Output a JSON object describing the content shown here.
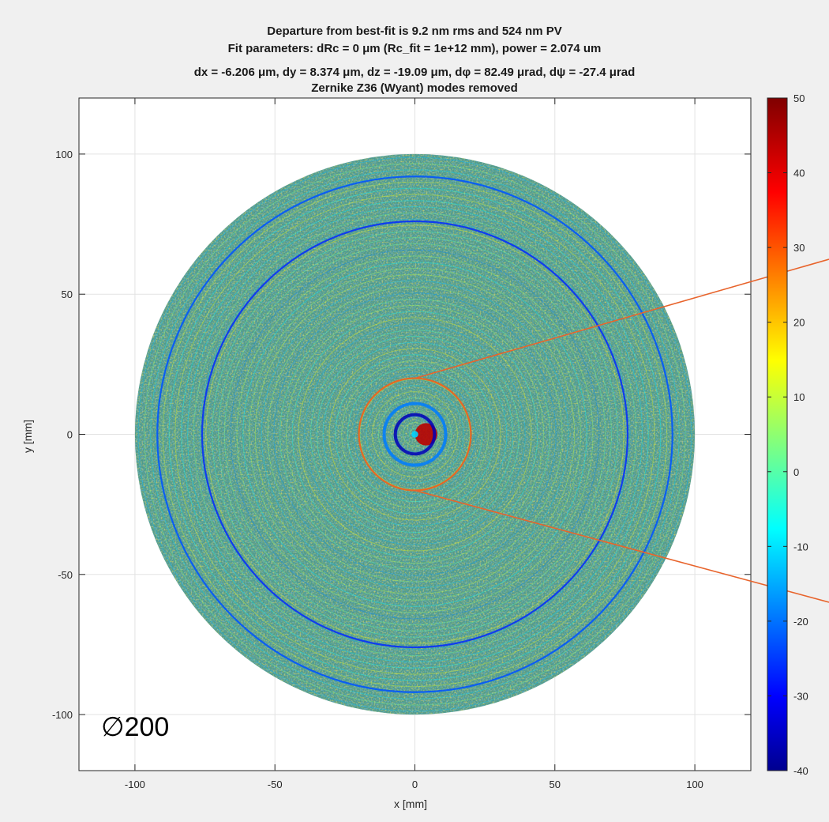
{
  "chart_data": {
    "type": "heatmap",
    "title_lines": [
      "Departure from best-fit is 9.2 nm rms and 524 nm PV",
      "Fit parameters: dRc = 0 μm (Rc_fit = 1e+12 mm), power = 2.074 um",
      "dx = -6.206 μm, dy = 8.374 μm, dz = -19.09 μm, dφ = 82.49 μrad, dψ = -27.4 μrad",
      "Zernike Z36 (Wyant) modes removed"
    ],
    "xlabel": "x [mm]",
    "ylabel": "y [mm]",
    "xlim": [
      -120,
      120
    ],
    "ylim": [
      -120,
      120
    ],
    "xticks": [
      -100,
      -50,
      0,
      50,
      100
    ],
    "yticks": [
      -100,
      -50,
      0,
      50,
      100
    ],
    "grid": true,
    "aperture_diameter_mm": 200,
    "aperture_label": "∅200",
    "colorbar": {
      "range": [
        -40,
        50
      ],
      "ticks": [
        -40,
        -30,
        -20,
        -10,
        0,
        10,
        20,
        30,
        40,
        50
      ],
      "colormap": "jet"
    },
    "features": [
      {
        "kind": "center-peak",
        "x_mm": 4,
        "y_mm": 0,
        "radius_mm": 4,
        "value": 45
      },
      {
        "kind": "ring",
        "radius_mm": 7,
        "value": -35
      },
      {
        "kind": "ring",
        "radius_mm": 11,
        "value": -18
      },
      {
        "kind": "ring",
        "radius_mm": 20,
        "value": 30
      },
      {
        "kind": "ring",
        "radius_mm": 76,
        "value": -25
      },
      {
        "kind": "ring",
        "radius_mm": 92,
        "value": -22
      }
    ],
    "annotation": {
      "kind": "zoom-callout",
      "color": "#e8642c",
      "circle_center_mm": [
        0,
        0
      ],
      "circle_radius_mm": 20,
      "lines_to": "right-edge"
    }
  }
}
